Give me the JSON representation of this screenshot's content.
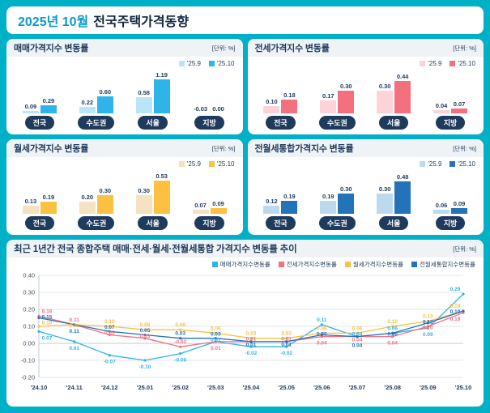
{
  "page": {
    "title_month": "2025년 10월",
    "title_rest": "전국주택가격동향"
  },
  "chart_data": [
    {
      "id": "sale-price",
      "type": "bar",
      "title": "매매가격지수 변동률",
      "unit": "[단위: %]",
      "categories": [
        "전국",
        "수도권",
        "서울",
        "지방"
      ],
      "series": [
        {
          "name": "'25.9",
          "color": "#b9e6f7",
          "values": [
            0.09,
            0.22,
            0.58,
            -0.03
          ]
        },
        {
          "name": "'25.10",
          "color": "#2fb4e9",
          "values": [
            0.29,
            0.6,
            1.19,
            0.0
          ]
        }
      ],
      "ylim": [
        0,
        1.3
      ],
      "legend_position": "top-right"
    },
    {
      "id": "jeonse-price",
      "type": "bar",
      "title": "전세가격지수 변동률",
      "unit": "[단위: %]",
      "categories": [
        "전국",
        "수도권",
        "서울",
        "지방"
      ],
      "series": [
        {
          "name": "'25.9",
          "color": "#fbd3d8",
          "values": [
            0.1,
            0.17,
            0.3,
            0.04
          ]
        },
        {
          "name": "'25.10",
          "color": "#f3707f",
          "values": [
            0.18,
            0.3,
            0.44,
            0.07
          ]
        }
      ],
      "ylim": [
        0,
        0.5
      ],
      "legend_position": "top-right"
    },
    {
      "id": "monthly-rent-price",
      "type": "bar",
      "title": "월세가격지수 변동률",
      "unit": "[단위: %]",
      "categories": [
        "전국",
        "수도권",
        "서울",
        "지방"
      ],
      "series": [
        {
          "name": "'25.9",
          "color": "#f4e2c0",
          "values": [
            0.13,
            0.2,
            0.3,
            0.07
          ]
        },
        {
          "name": "'25.10",
          "color": "#fcc043",
          "values": [
            0.19,
            0.3,
            0.53,
            0.09
          ]
        }
      ],
      "ylim": [
        0,
        0.6
      ],
      "legend_position": "top-right"
    },
    {
      "id": "jeonse-monthly-combined-price",
      "type": "bar",
      "title": "전월세통합가격지수 변동률",
      "unit": "[단위: %]",
      "categories": [
        "전국",
        "수도권",
        "서울",
        "지방"
      ],
      "series": [
        {
          "name": "'25.9",
          "color": "#bdd9ee",
          "values": [
            0.12,
            0.19,
            0.3,
            0.06
          ]
        },
        {
          "name": "'25.10",
          "color": "#2273b8",
          "values": [
            0.19,
            0.3,
            0.48,
            0.09
          ]
        }
      ],
      "ylim": [
        0,
        0.55
      ],
      "legend_position": "top-right"
    },
    {
      "id": "trend",
      "type": "line",
      "title": "최근 1년간 전국 종합주택 매매·전세·월세·전월세통합 가격지수 변동률 추이",
      "unit": "[단위: %]",
      "x": [
        "'24.10",
        "'24.11",
        "'24.12",
        "'25.01",
        "'25.02",
        "'25.03",
        "'25.04",
        "'25.05",
        "'25.06",
        "'25.07",
        "'25.08",
        "'25.09",
        "'25.10"
      ],
      "ylim": [
        -0.2,
        0.4
      ],
      "y_ticks": [
        "0.40",
        "0.30",
        "0.20",
        "0.10",
        "0.00",
        "-0.10",
        "-0.20"
      ],
      "grid": true,
      "legend_position": "top-right",
      "series": [
        {
          "name": "매매가격지수변동률",
          "color": "#2fb4e9",
          "values": [
            0.07,
            0.01,
            -0.07,
            -0.1,
            -0.06,
            0.01,
            -0.02,
            -0.02,
            0.11,
            0.04,
            0.06,
            0.09,
            0.29
          ]
        },
        {
          "name": "전세가격지수변동률",
          "color": "#f3707f",
          "values": [
            0.16,
            0.11,
            0.05,
            0.03,
            -0.02,
            0.01,
            0.01,
            0.01,
            0.04,
            0.04,
            0.04,
            0.1,
            0.18
          ]
        },
        {
          "name": "월세가격지수변동률",
          "color": "#fcc043",
          "values": [
            0.1,
            0.11,
            0.1,
            0.08,
            0.08,
            0.06,
            0.03,
            0.03,
            0.06,
            0.06,
            0.1,
            0.13,
            0.19
          ]
        },
        {
          "name": "전월세통합지수변동률",
          "color": "#2273b8",
          "values": [
            0.15,
            0.11,
            0.07,
            0.05,
            0.03,
            0.03,
            0.01,
            0.01,
            0.05,
            0.04,
            0.06,
            0.12,
            0.19
          ]
        }
      ]
    }
  ]
}
